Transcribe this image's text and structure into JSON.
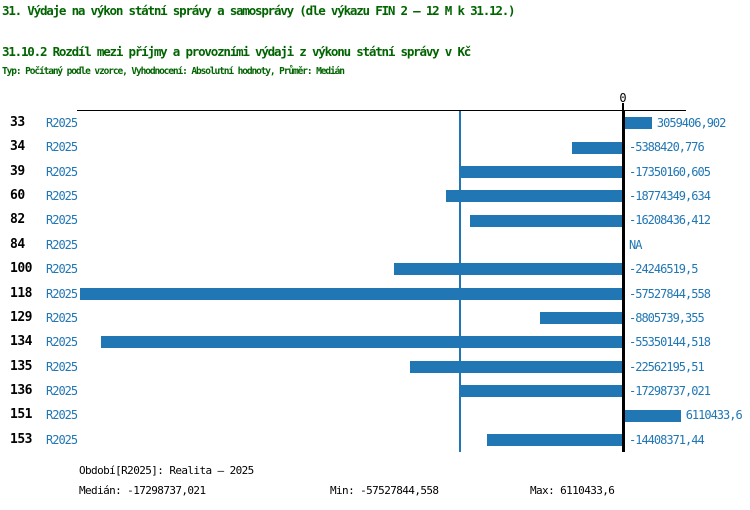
{
  "header": {
    "title1": "31. Výdaje na výkon státní správy a samosprávy (dle výkazu FIN 2 – 12 M k 31.12.)",
    "title2": "31.10.2 Rozdíl mezi příjmy a provozními výdaji z výkonu státní správy v Kč",
    "subtitle": "Typ: Počítaný podle vzorce, Vyhodnocení: Absolutní hodnoty, Průměr: Medián"
  },
  "chart_data": {
    "type": "bar",
    "orientation": "horizontal",
    "categories": [
      "33",
      "34",
      "39",
      "60",
      "82",
      "84",
      "100",
      "118",
      "129",
      "134",
      "135",
      "136",
      "151",
      "153"
    ],
    "series": [
      {
        "name": "R2025",
        "values": [
          3059406.902,
          -5388420.776,
          -17350160.605,
          -18774349.634,
          -16208436.412,
          null,
          -24246519.5,
          -57527844.558,
          -8805739.355,
          -55350144.518,
          -22562195.51,
          -17298737.021,
          6110433.6,
          -14408371.44
        ],
        "labels": [
          "3059406,902",
          "-5388420,776",
          "-17350160,605",
          "-18774349,634",
          "-16208436,412",
          "NA",
          "-24246519,5",
          "-57527844,558",
          "-8805739,355",
          "-55350144,518",
          "-22562195,51",
          "-17298737,021",
          "6110433,6",
          "-14408371,44"
        ]
      }
    ],
    "axis": {
      "zero_label": "0",
      "xlim": [
        -57845000,
        6674000
      ]
    },
    "median_line_value": -17298737.021,
    "title": "31.10.2 Rozdíl mezi příjmy a provozními výdaji z výkonu státní správy v Kč",
    "xlabel": "",
    "ylabel": "",
    "grid": false,
    "legend_position": "none"
  },
  "footer": {
    "period": "Období[R2025]: Realita – 2025",
    "median": "Medián: -17298737,021",
    "min": "Min: -57527844,558",
    "max": "Max: 6110433,6"
  },
  "colors": {
    "title_green": "#006400",
    "bar_blue": "#2177b4",
    "axis_black": "#000000"
  }
}
